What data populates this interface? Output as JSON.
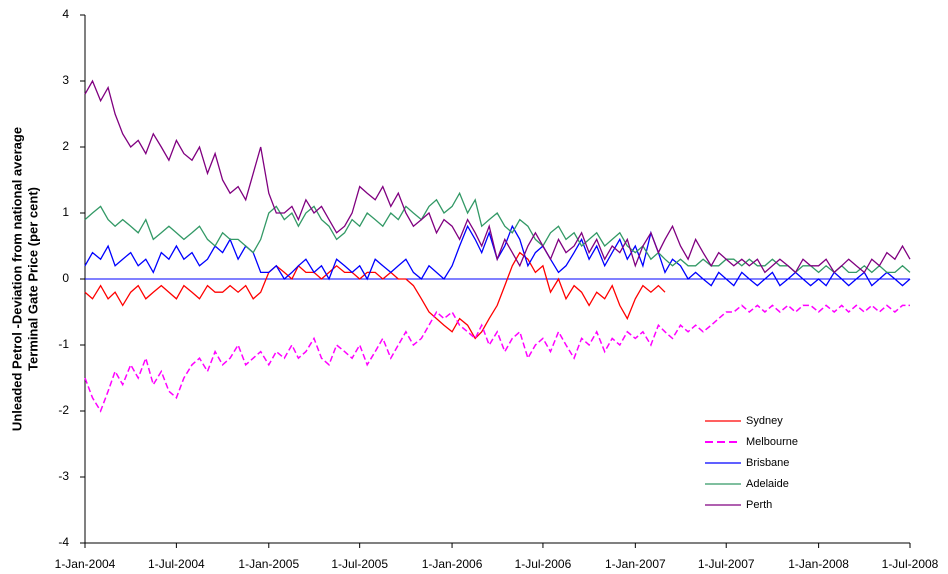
{
  "chart_data": {
    "type": "line",
    "y_label": [
      "Unleaded Petrol -Deviation from national average",
      "Terminal Gate Price (per cent)"
    ],
    "x": [
      "2004-01-01",
      "2004-01-16",
      "2004-02-01",
      "2004-02-16",
      "2004-03-01",
      "2004-03-16",
      "2004-04-01",
      "2004-04-16",
      "2004-05-01",
      "2004-05-16",
      "2004-06-01",
      "2004-06-16",
      "2004-07-01",
      "2004-07-16",
      "2004-08-01",
      "2004-08-16",
      "2004-09-01",
      "2004-09-16",
      "2004-10-01",
      "2004-10-16",
      "2004-11-01",
      "2004-11-16",
      "2004-12-01",
      "2004-12-16",
      "2005-01-01",
      "2005-01-16",
      "2005-02-01",
      "2005-02-16",
      "2005-03-01",
      "2005-03-16",
      "2005-04-01",
      "2005-04-16",
      "2005-05-01",
      "2005-05-16",
      "2005-06-01",
      "2005-06-16",
      "2005-07-01",
      "2005-07-16",
      "2005-08-01",
      "2005-08-16",
      "2005-09-01",
      "2005-09-16",
      "2005-10-01",
      "2005-10-16",
      "2005-11-01",
      "2005-11-16",
      "2005-12-01",
      "2005-12-16",
      "2006-01-01",
      "2006-01-16",
      "2006-02-01",
      "2006-02-16",
      "2006-03-01",
      "2006-03-16",
      "2006-04-01",
      "2006-04-16",
      "2006-05-01",
      "2006-05-16",
      "2006-06-01",
      "2006-06-16",
      "2006-07-01",
      "2006-07-16",
      "2006-08-01",
      "2006-08-16",
      "2006-09-01",
      "2006-09-16",
      "2006-10-01",
      "2006-10-16",
      "2006-11-01",
      "2006-11-16",
      "2006-12-01",
      "2006-12-16",
      "2007-01-01",
      "2007-01-16",
      "2007-02-01",
      "2007-02-16",
      "2007-03-01",
      "2007-03-16",
      "2007-04-01",
      "2007-04-16",
      "2007-05-01",
      "2007-05-16",
      "2007-06-01",
      "2007-06-16",
      "2007-07-01",
      "2007-07-16",
      "2007-08-01",
      "2007-08-16",
      "2007-09-01",
      "2007-09-16",
      "2007-10-01",
      "2007-10-16",
      "2007-11-01",
      "2007-11-16",
      "2007-12-01",
      "2007-12-16",
      "2008-01-01",
      "2008-01-16",
      "2008-02-01",
      "2008-02-16",
      "2008-03-01",
      "2008-03-16",
      "2008-04-01",
      "2008-04-16",
      "2008-05-01",
      "2008-05-16",
      "2008-06-01",
      "2008-06-16",
      "2008-07-01"
    ],
    "series": [
      {
        "name": "Sydney",
        "color": "#ff0000",
        "dash": false,
        "values": [
          -0.2,
          -0.3,
          -0.1,
          -0.3,
          -0.2,
          -0.4,
          -0.2,
          -0.1,
          -0.3,
          -0.2,
          -0.1,
          -0.2,
          -0.3,
          -0.1,
          -0.2,
          -0.3,
          -0.1,
          -0.2,
          -0.2,
          -0.1,
          -0.2,
          -0.1,
          -0.3,
          -0.2,
          0.1,
          0.2,
          0.1,
          0.0,
          0.2,
          0.1,
          0.1,
          0.0,
          0.1,
          0.2,
          0.1,
          0.1,
          0.0,
          0.1,
          0.1,
          0.0,
          0.1,
          0.0,
          0.0,
          -0.1,
          -0.3,
          -0.5,
          -0.6,
          -0.7,
          -0.8,
          -0.6,
          -0.7,
          -0.9,
          -0.8,
          -0.6,
          -0.4,
          -0.1,
          0.2,
          0.4,
          0.3,
          0.1,
          0.2,
          -0.2,
          0.0,
          -0.3,
          -0.1,
          -0.2,
          -0.4,
          -0.2,
          -0.3,
          -0.1,
          -0.4,
          -0.6,
          -0.3,
          -0.1,
          -0.2,
          -0.1,
          -0.2,
          null,
          null,
          null,
          null,
          null,
          null,
          null,
          null,
          null,
          null,
          null,
          null,
          null,
          null,
          null,
          null,
          null,
          null,
          null,
          null,
          null,
          null,
          null,
          null,
          null,
          null,
          null,
          null,
          null,
          null,
          null,
          null
        ]
      },
      {
        "name": "Melbourne",
        "color": "#ff00ff",
        "dash": true,
        "values": [
          -1.5,
          -1.8,
          -2.0,
          -1.7,
          -1.4,
          -1.6,
          -1.3,
          -1.5,
          -1.2,
          -1.6,
          -1.4,
          -1.7,
          -1.8,
          -1.5,
          -1.3,
          -1.2,
          -1.4,
          -1.1,
          -1.3,
          -1.2,
          -1.0,
          -1.3,
          -1.2,
          -1.1,
          -1.3,
          -1.1,
          -1.2,
          -1.0,
          -1.2,
          -1.1,
          -0.9,
          -1.2,
          -1.3,
          -1.0,
          -1.1,
          -1.2,
          -1.0,
          -1.3,
          -1.1,
          -0.9,
          -1.2,
          -1.0,
          -0.8,
          -1.0,
          -0.9,
          -0.7,
          -0.5,
          -0.6,
          -0.5,
          -0.7,
          -0.8,
          -0.9,
          -0.7,
          -1.0,
          -0.8,
          -1.1,
          -0.9,
          -0.8,
          -1.2,
          -1.0,
          -0.9,
          -1.1,
          -0.8,
          -1.0,
          -1.2,
          -0.9,
          -1.0,
          -0.8,
          -1.1,
          -0.9,
          -1.0,
          -0.8,
          -0.9,
          -0.8,
          -1.0,
          -0.7,
          -0.8,
          -0.9,
          -0.7,
          -0.8,
          -0.7,
          -0.8,
          -0.7,
          -0.6,
          -0.5,
          -0.5,
          -0.4,
          -0.5,
          -0.4,
          -0.5,
          -0.4,
          -0.5,
          -0.4,
          -0.5,
          -0.4,
          -0.4,
          -0.5,
          -0.4,
          -0.5,
          -0.4,
          -0.5,
          -0.4,
          -0.5,
          -0.4,
          -0.5,
          -0.4,
          -0.5,
          -0.4,
          -0.4
        ]
      },
      {
        "name": "Brisbane",
        "color": "#0000ff",
        "dash": false,
        "values": [
          0.2,
          0.4,
          0.3,
          0.5,
          0.2,
          0.3,
          0.4,
          0.2,
          0.3,
          0.1,
          0.4,
          0.3,
          0.5,
          0.3,
          0.4,
          0.2,
          0.3,
          0.5,
          0.4,
          0.6,
          0.3,
          0.5,
          0.4,
          0.1,
          0.1,
          0.2,
          0.0,
          0.1,
          0.2,
          0.3,
          0.1,
          0.2,
          0.0,
          0.3,
          0.2,
          0.1,
          0.2,
          0.0,
          0.3,
          0.2,
          0.1,
          0.2,
          0.3,
          0.1,
          0.0,
          0.2,
          0.1,
          0.0,
          0.2,
          0.5,
          0.8,
          0.6,
          0.4,
          0.7,
          0.3,
          0.5,
          0.8,
          0.6,
          0.2,
          0.4,
          0.5,
          0.3,
          0.1,
          0.2,
          0.4,
          0.6,
          0.3,
          0.5,
          0.2,
          0.4,
          0.6,
          0.3,
          0.5,
          0.2,
          0.7,
          0.4,
          0.1,
          0.3,
          0.2,
          0.0,
          0.1,
          0.0,
          -0.1,
          0.1,
          0.0,
          -0.1,
          0.1,
          0.0,
          -0.1,
          0.0,
          0.1,
          -0.1,
          0.0,
          0.1,
          0.0,
          -0.1,
          0.0,
          -0.1,
          0.1,
          0.0,
          -0.1,
          0.0,
          0.1,
          -0.1,
          0.0,
          0.1,
          0.0,
          -0.1,
          0.0
        ]
      },
      {
        "name": "Adelaide",
        "color": "#339966",
        "dash": false,
        "values": [
          0.9,
          1.0,
          1.1,
          0.9,
          0.8,
          0.9,
          0.8,
          0.7,
          0.9,
          0.6,
          0.7,
          0.8,
          0.7,
          0.6,
          0.7,
          0.8,
          0.6,
          0.5,
          0.7,
          0.6,
          0.6,
          0.5,
          0.4,
          0.6,
          1.0,
          1.1,
          0.9,
          1.0,
          0.8,
          1.0,
          1.1,
          0.9,
          0.8,
          0.6,
          0.7,
          0.9,
          0.8,
          1.0,
          0.9,
          0.8,
          1.0,
          0.9,
          1.1,
          1.0,
          0.9,
          1.1,
          1.2,
          1.0,
          1.1,
          1.3,
          1.0,
          1.2,
          0.8,
          0.9,
          1.0,
          0.8,
          0.7,
          0.9,
          0.8,
          0.6,
          0.5,
          0.7,
          0.8,
          0.6,
          0.7,
          0.5,
          0.6,
          0.7,
          0.5,
          0.6,
          0.7,
          0.5,
          0.4,
          0.5,
          0.3,
          0.4,
          0.3,
          0.2,
          0.3,
          0.2,
          0.2,
          0.3,
          0.2,
          0.2,
          0.3,
          0.3,
          0.2,
          0.3,
          0.2,
          0.2,
          0.3,
          0.2,
          0.2,
          0.1,
          0.2,
          0.2,
          0.1,
          0.2,
          0.1,
          0.2,
          0.1,
          0.1,
          0.2,
          0.1,
          0.2,
          0.1,
          0.1,
          0.2,
          0.1
        ]
      },
      {
        "name": "Perth",
        "color": "#800080",
        "dash": false,
        "values": [
          2.8,
          3.0,
          2.7,
          2.9,
          2.5,
          2.2,
          2.0,
          2.1,
          1.9,
          2.2,
          2.0,
          1.8,
          2.1,
          1.9,
          1.8,
          2.0,
          1.6,
          1.9,
          1.5,
          1.3,
          1.4,
          1.2,
          1.6,
          2.0,
          1.3,
          1.0,
          1.0,
          1.1,
          0.9,
          1.2,
          1.0,
          1.1,
          0.9,
          0.7,
          0.8,
          1.0,
          1.4,
          1.3,
          1.2,
          1.4,
          1.1,
          1.3,
          1.0,
          0.8,
          0.9,
          1.0,
          0.7,
          0.9,
          0.8,
          0.6,
          0.9,
          0.7,
          0.5,
          0.8,
          0.3,
          0.6,
          0.4,
          0.2,
          0.5,
          0.7,
          0.5,
          0.3,
          0.6,
          0.4,
          0.5,
          0.7,
          0.4,
          0.6,
          0.3,
          0.5,
          0.4,
          0.6,
          0.2,
          0.5,
          0.7,
          0.4,
          0.6,
          0.8,
          0.5,
          0.3,
          0.6,
          0.4,
          0.2,
          0.4,
          0.3,
          0.2,
          0.3,
          0.2,
          0.3,
          0.1,
          0.2,
          0.3,
          0.2,
          0.1,
          0.3,
          0.2,
          0.2,
          0.3,
          0.1,
          0.2,
          0.3,
          0.2,
          0.1,
          0.3,
          0.2,
          0.4,
          0.3,
          0.5,
          0.3
        ]
      }
    ],
    "xlim": [
      "2004-01-01",
      "2008-07-01"
    ],
    "xticks": [
      {
        "value": "2004-01-01",
        "label": "1-Jan-2004"
      },
      {
        "value": "2004-07-01",
        "label": "1-Jul-2004"
      },
      {
        "value": "2005-01-01",
        "label": "1-Jan-2005"
      },
      {
        "value": "2005-07-01",
        "label": "1-Jul-2005"
      },
      {
        "value": "2006-01-01",
        "label": "1-Jan-2006"
      },
      {
        "value": "2006-07-01",
        "label": "1-Jul-2006"
      },
      {
        "value": "2007-01-01",
        "label": "1-Jan-2007"
      },
      {
        "value": "2007-07-01",
        "label": "1-Jul-2007"
      },
      {
        "value": "2008-01-01",
        "label": "1-Jan-2008"
      },
      {
        "value": "2008-07-01",
        "label": "1-Jul-2008"
      }
    ],
    "ylim": [
      -4,
      4
    ],
    "yticks": [
      -4,
      -3,
      -2,
      -1,
      0,
      1,
      2,
      3,
      4
    ],
    "legend": "lower-right"
  }
}
